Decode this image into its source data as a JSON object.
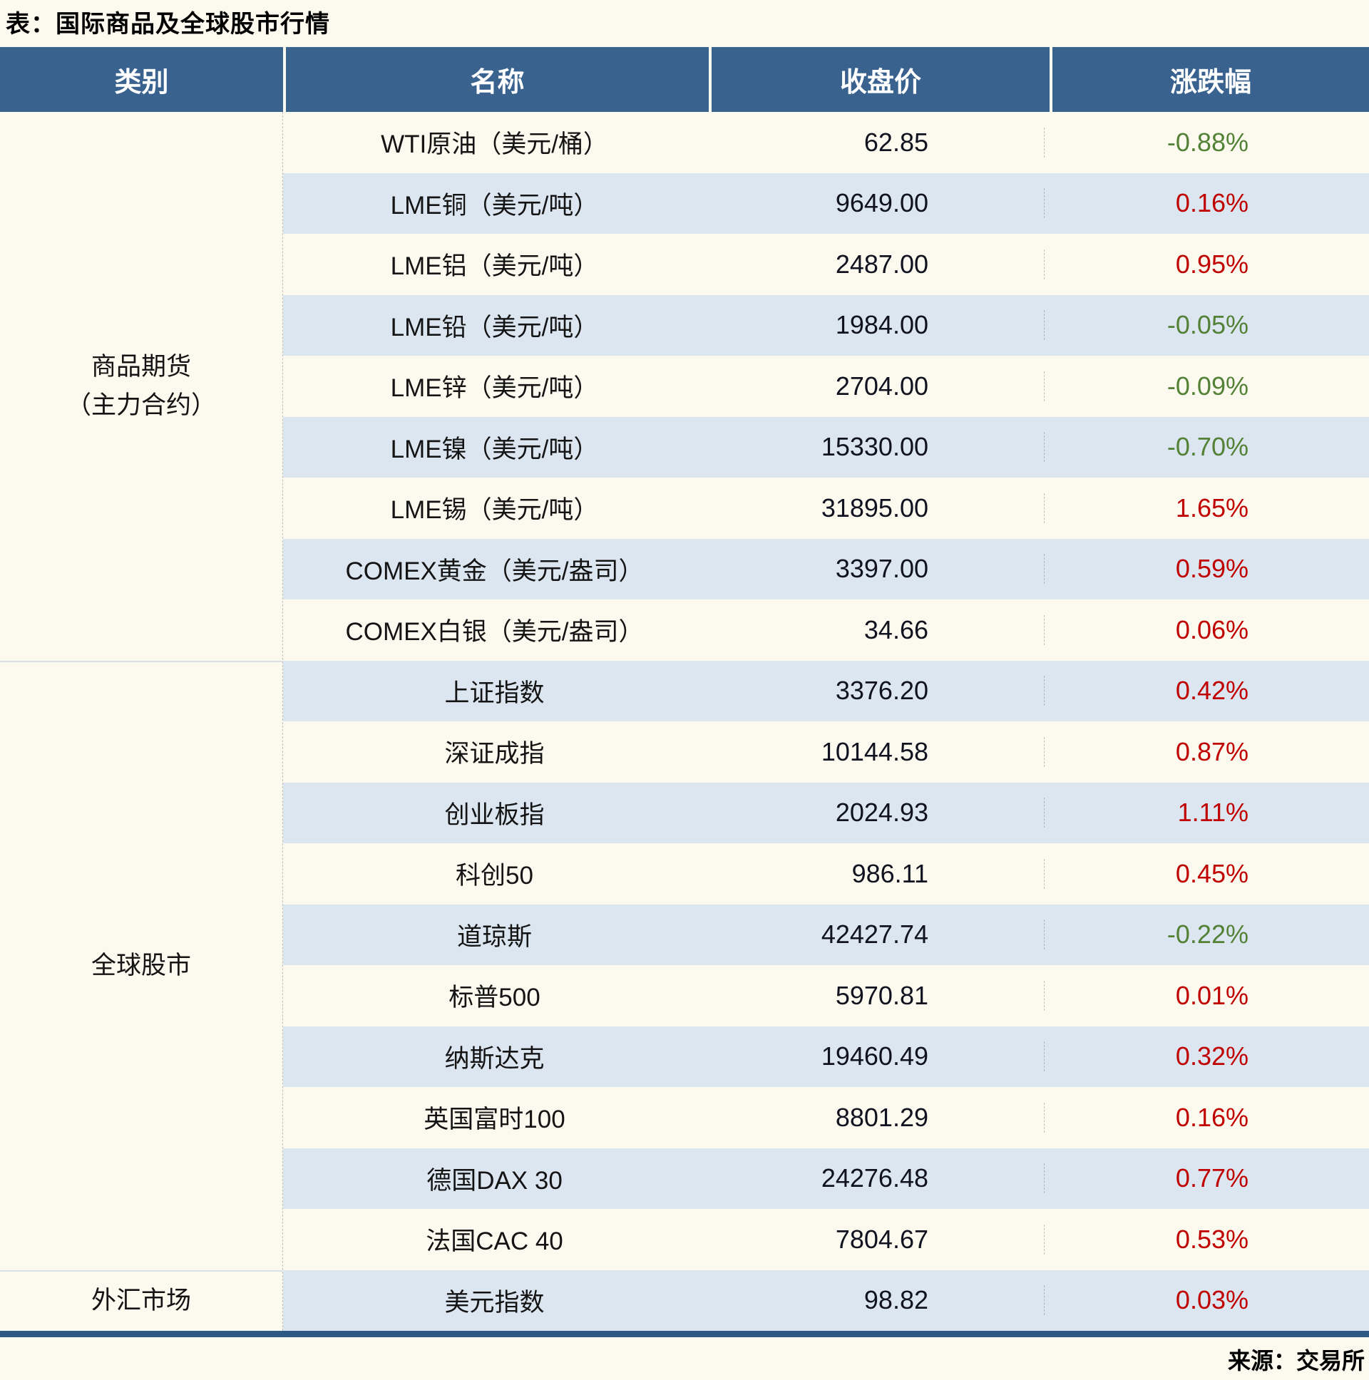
{
  "title": "表：国际商品及全球股市行情",
  "source": "来源：交易所",
  "colors": {
    "header_bg": "#3a628f",
    "alt_row_bg": "#dce6f1",
    "page_bg": "#fcfaef",
    "up_red": "#c00000",
    "down_green": "#538135",
    "bottom_bar": "#2e5984"
  },
  "table": {
    "headers": {
      "category": "类别",
      "name": "名称",
      "close": "收盘价",
      "change": "涨跌幅"
    },
    "sections": [
      {
        "category_line1": "商品期货",
        "category_line2": "（主力合约）",
        "rows": [
          {
            "name": "WTI原油（美元/桶）",
            "close": "62.85",
            "change": "-0.88%"
          },
          {
            "name": "LME铜（美元/吨）",
            "close": "9649.00",
            "change": "0.16%"
          },
          {
            "name": "LME铝（美元/吨）",
            "close": "2487.00",
            "change": "0.95%"
          },
          {
            "name": "LME铅（美元/吨）",
            "close": "1984.00",
            "change": "-0.05%"
          },
          {
            "name": "LME锌（美元/吨）",
            "close": "2704.00",
            "change": "-0.09%"
          },
          {
            "name": "LME镍（美元/吨）",
            "close": "15330.00",
            "change": "-0.70%"
          },
          {
            "name": "LME锡（美元/吨）",
            "close": "31895.00",
            "change": "1.65%"
          },
          {
            "name": "COMEX黄金（美元/盎司）",
            "close": "3397.00",
            "change": "0.59%"
          },
          {
            "name": "COMEX白银（美元/盎司）",
            "close": "34.66",
            "change": "0.06%"
          }
        ]
      },
      {
        "category_line1": "全球股市",
        "category_line2": "",
        "rows": [
          {
            "name": "上证指数",
            "close": "3376.20",
            "change": "0.42%"
          },
          {
            "name": "深证成指",
            "close": "10144.58",
            "change": "0.87%"
          },
          {
            "name": "创业板指",
            "close": "2024.93",
            "change": "1.11%"
          },
          {
            "name": "科创50",
            "close": "986.11",
            "change": "0.45%"
          },
          {
            "name": "道琼斯",
            "close": "42427.74",
            "change": "-0.22%"
          },
          {
            "name": "标普500",
            "close": "5970.81",
            "change": "0.01%"
          },
          {
            "name": "纳斯达克",
            "close": "19460.49",
            "change": "0.32%"
          },
          {
            "name": "英国富时100",
            "close": "8801.29",
            "change": "0.16%"
          },
          {
            "name": "德国DAX 30",
            "close": "24276.48",
            "change": "0.77%"
          },
          {
            "name": "法国CAC 40",
            "close": "7804.67",
            "change": "0.53%"
          }
        ]
      },
      {
        "category_line1": "外汇市场",
        "category_line2": "",
        "rows": [
          {
            "name": "美元指数",
            "close": "98.82",
            "change": "0.03%"
          }
        ]
      }
    ]
  }
}
